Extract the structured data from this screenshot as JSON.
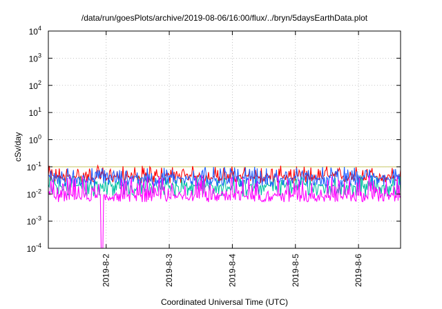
{
  "chart_data": {
    "type": "line",
    "title": "/data/run/goesPlots/archive/2019-08-06/16:00/flux/../bryn/5daysEarthData.plot",
    "xlabel": "Coordinated Universal Time (UTC)",
    "ylabel": "cSv/day",
    "yscale": "log",
    "ylim": [
      0.0001,
      10000
    ],
    "xlim": [
      "2019-08-01 02:00",
      "2019-08-06 16:00"
    ],
    "grid": true,
    "y_ticks": [
      {
        "base": "10",
        "exp": "-4",
        "value": 0.0001
      },
      {
        "base": "10",
        "exp": "-3",
        "value": 0.001
      },
      {
        "base": "10",
        "exp": "-2",
        "value": 0.01
      },
      {
        "base": "10",
        "exp": "-1",
        "value": 0.1
      },
      {
        "base": "10",
        "exp": "0",
        "value": 1
      },
      {
        "base": "10",
        "exp": "1",
        "value": 10
      },
      {
        "base": "10",
        "exp": "2",
        "value": 100
      },
      {
        "base": "10",
        "exp": "3",
        "value": 1000
      },
      {
        "base": "10",
        "exp": "4",
        "value": 10000
      }
    ],
    "x_ticks": [
      {
        "label": "2019-8-2",
        "value": "2019-08-02 00:00"
      },
      {
        "label": "2019-8-3",
        "value": "2019-08-03 00:00"
      },
      {
        "label": "2019-8-4",
        "value": "2019-08-04 00:00"
      },
      {
        "label": "2019-8-5",
        "value": "2019-08-05 00:00"
      },
      {
        "label": "2019-8-6",
        "value": "2019-08-06 00:00"
      }
    ],
    "reference_line": {
      "value": 0.1,
      "color": "#c8c864"
    },
    "series": [
      {
        "color": "#ff0000",
        "typical": 0.045,
        "low": 0.025,
        "high": 0.11
      },
      {
        "color": "#00c0a0",
        "typical": 0.02,
        "low": 0.008,
        "high": 0.05
      },
      {
        "color": "#2060ff",
        "typical": 0.038,
        "low": 0.018,
        "high": 0.1
      },
      {
        "color": "#ff00ff",
        "typical": 0.009,
        "low": 0.005,
        "high": 0.05
      }
    ],
    "dropout": {
      "x": "2019-08-01 22:30",
      "value": 0.0001
    }
  }
}
